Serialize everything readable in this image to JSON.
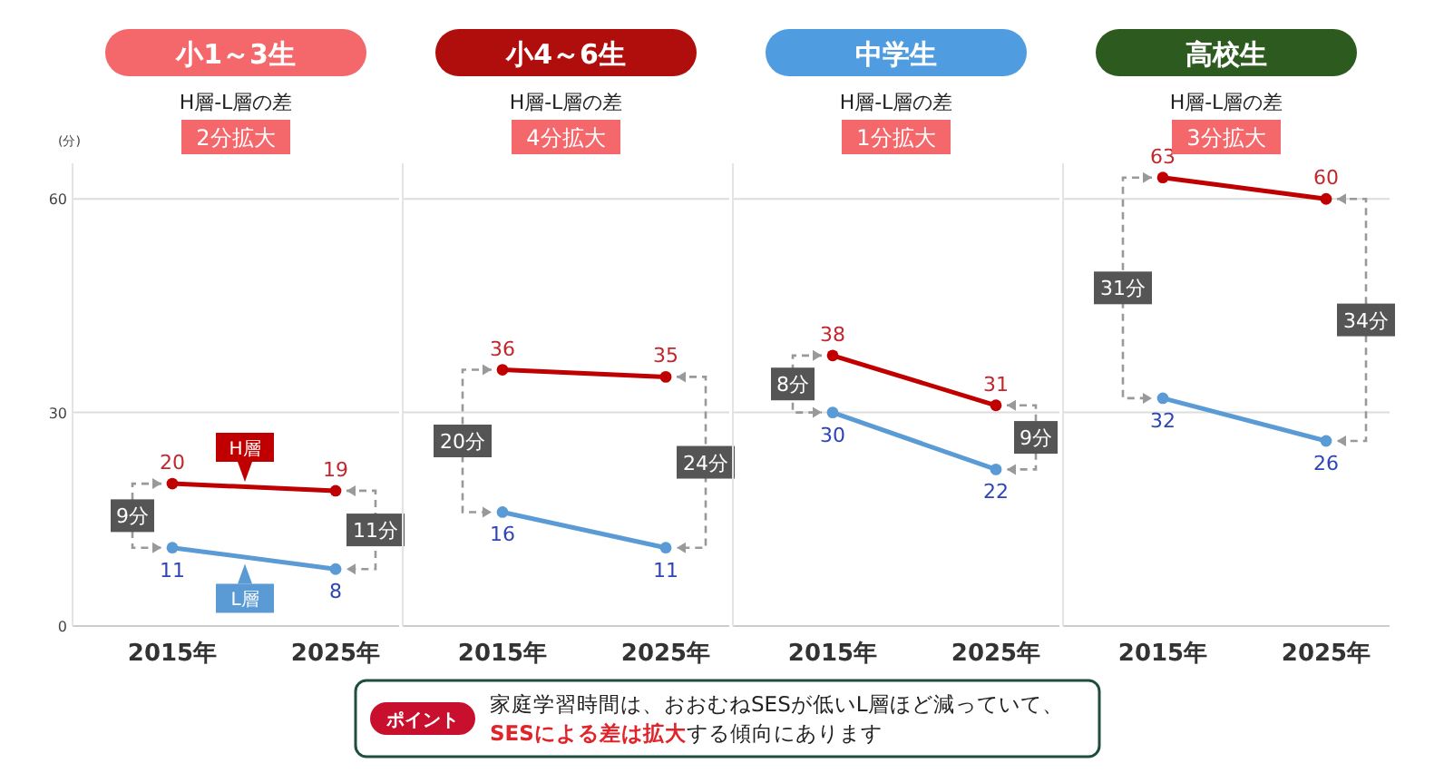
{
  "chart_data": [
    {
      "type": "line",
      "title": "小1～3生",
      "subtitle": "H層-L層の差",
      "ylabel": "(分)",
      "categories": [
        "2015年",
        "2025年"
      ],
      "ylim": [
        0,
        65
      ],
      "yticks": [
        0,
        30,
        60
      ],
      "grid": "y",
      "marker": "circle",
      "data_labels": true,
      "series": [
        {
          "name": "H層",
          "color": "#c00000",
          "values": [
            20,
            19
          ]
        },
        {
          "name": "L層",
          "color": "#5b9bd5",
          "values": [
            11,
            8
          ]
        }
      ],
      "annotations": [
        "2分拡大",
        "9分",
        "11分"
      ]
    },
    {
      "type": "line",
      "title": "小4～6生",
      "subtitle": "H層-L層の差",
      "categories": [
        "2015年",
        "2025年"
      ],
      "ylim": [
        0,
        65
      ],
      "yticks": [
        0,
        30,
        60
      ],
      "grid": "y",
      "marker": "circle",
      "data_labels": true,
      "tick_labels": "x",
      "series": [
        {
          "color": "#c00000",
          "values": [
            36,
            35
          ]
        },
        {
          "color": "#5b9bd5",
          "values": [
            16,
            11
          ]
        }
      ],
      "annotations": [
        "4分拡大",
        "20分",
        "24分"
      ]
    },
    {
      "type": "line",
      "title": "中学生",
      "subtitle": "H層-L層の差",
      "categories": [
        "2015年",
        "2025年"
      ],
      "ylim": [
        0,
        65
      ],
      "yticks": [
        0,
        30,
        60
      ],
      "grid": "y",
      "marker": "circle",
      "data_labels": true,
      "tick_labels": "x",
      "series": [
        {
          "color": "#c00000",
          "values": [
            38,
            31
          ]
        },
        {
          "color": "#5b9bd5",
          "values": [
            30,
            22
          ]
        }
      ],
      "annotations": [
        "1分拡大",
        "8分",
        "9分"
      ]
    },
    {
      "type": "line",
      "title": "高校生",
      "subtitle": "H層-L層の差",
      "categories": [
        "2015年",
        "2025年"
      ],
      "ylim": [
        0,
        65
      ],
      "yticks": [
        0,
        30,
        60
      ],
      "grid": "y",
      "marker": "circle",
      "data_labels": true,
      "tick_labels": "x",
      "series": [
        {
          "color": "#c00000",
          "values": [
            63,
            60
          ]
        },
        {
          "color": "#5b9bd5",
          "values": [
            32,
            26
          ]
        }
      ],
      "annotations": [
        "3分拡大",
        "31分",
        "34分"
      ]
    },
    {
      "type": "other",
      "title": "ポイント",
      "annotations": [
        "家庭学習時間は、おおむねSESが低いL層ほど減っていて、",
        "**SESによる差は拡大**する傾向にあります"
      ]
    }
  ]
}
